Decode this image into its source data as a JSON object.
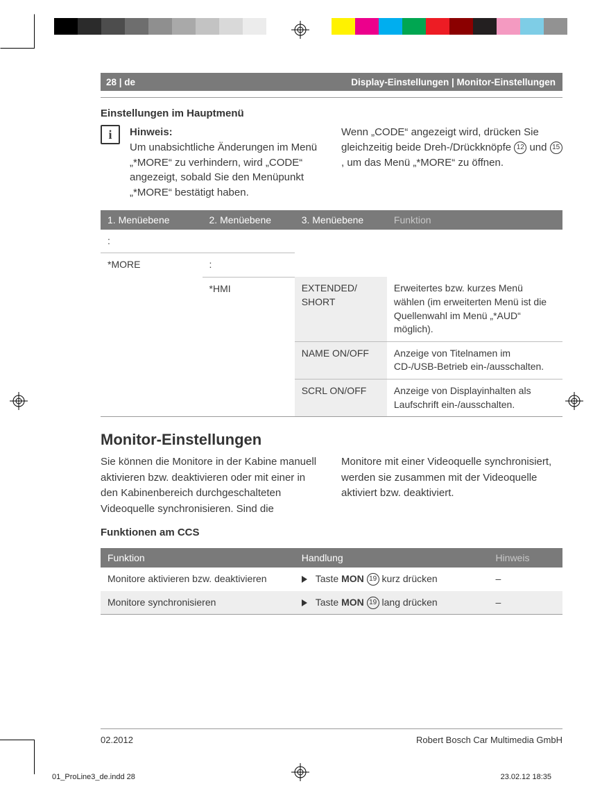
{
  "print_marks": {
    "grayscale": [
      "#000000",
      "#2b2b2b",
      "#4d4d4d",
      "#6e6e6e",
      "#8f8f8f",
      "#a9a9a9",
      "#c3c3c3",
      "#d9d9d9",
      "#ececec",
      "#ffffff"
    ],
    "process": [
      "#fff200",
      "#ec008c",
      "#00aeef",
      "#00a651",
      "#ed1c24",
      "#8b0000",
      "#231f20",
      "#f49ac1",
      "#7ecde6",
      "#929292"
    ]
  },
  "running_head": {
    "page_label": "28 | de",
    "section": "Display-Einstellungen | Monitor-Einstellungen"
  },
  "section1": {
    "heading": "Einstellungen im Hauptmenü",
    "hinweis_label": "Hinweis:",
    "hinweis_body": "Um unabsichtliche Änderungen im Menü „*MORE“ zu verhindern, wird „CODE“ angezeigt, sobald Sie den Menüpunkt „*MORE“ bestätigt haben.",
    "code_pre": "Wenn „CODE“ angezeigt wird, drücken Sie gleichzeitig beide Dreh-/Drückknöpfe ",
    "knob1": "12",
    "code_mid": " und ",
    "knob2": "15",
    "code_post": ", um das Menü „*MORE“ zu öffnen."
  },
  "menu_table": {
    "headers": [
      "1. Menüebene",
      "2. Menüebene",
      "3. Menüebene",
      "Funktion"
    ],
    "r1c1": ":",
    "r2c1": "*MORE",
    "r2c2": ":",
    "r3c2": "*HMI",
    "r3c3": "EXTENDED/ SHORT",
    "r3c4": "Erweitertes bzw. kurzes Menü wählen (im erweiterten Menü ist die Quellenwahl im Menü „*AUD“ möglich).",
    "r4c3": "NAME ON/OFF",
    "r4c4": "Anzeige von Titelnamen im CD-/USB-Betrieb ein-/ausschalten.",
    "r5c3": "SCRL ON/OFF",
    "r5c4": "Anzeige von Displayinhalten als Laufschrift ein-/ausschalten."
  },
  "section2": {
    "heading": "Monitor-Einstellungen",
    "body_left": "Sie können die Monitore in der Kabine manuell aktivieren bzw. deaktivieren oder mit einer in den Kabinenbereich durchgeschalteten Videoquelle synchronisieren. Sind die",
    "body_right": "Monitore mit einer Videoquelle synchronisiert, werden sie zusammen mit der Videoquelle aktiviert bzw. deaktiviert.",
    "subhead": "Funktionen am CCS"
  },
  "ccs_table": {
    "headers": [
      "Funktion",
      "Handlung",
      "Hinweis"
    ],
    "r1c1": "Monitore aktivieren bzw. deaktivieren",
    "r1c2_pre": "Taste ",
    "r1c2_btn": "MON",
    "r1c2_num": "19",
    "r1c2_post": " kurz drücken",
    "r1c3": "–",
    "r2c1": "Monitore synchronisieren",
    "r2c2_pre": "Taste ",
    "r2c2_btn": "MON",
    "r2c2_num": "19",
    "r2c2_post": " lang drücken",
    "r2c3": "–"
  },
  "footer": {
    "date": "02.2012",
    "company": "Robert Bosch Car Multimedia GmbH"
  },
  "imprint": {
    "file": "01_ProLine3_de.indd   28",
    "stamp": "23.02.12   18:35"
  }
}
